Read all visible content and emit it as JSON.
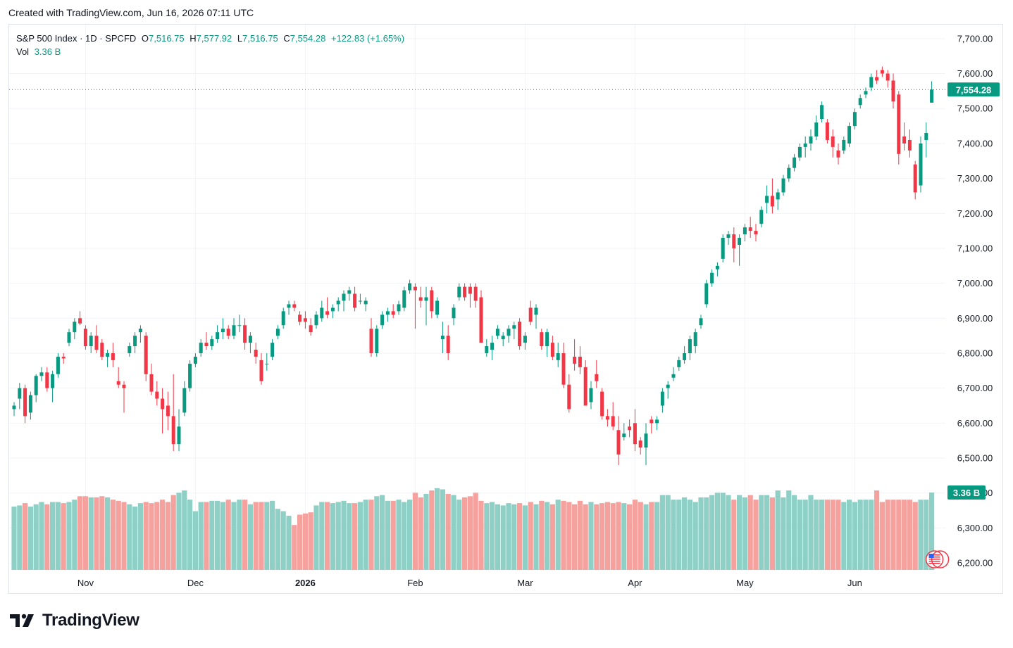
{
  "header": {
    "created_text": "Created with TradingView.com, Jun 16, 2026 07:11 UTC"
  },
  "legend": {
    "symbol": "S&P 500 Index · 1D · SPCFD",
    "o_label": "O",
    "o_value": "7,516.75",
    "h_label": "H",
    "h_value": "7,577.92",
    "l_label": "L",
    "l_value": "7,516.75",
    "c_label": "C",
    "c_value": "7,554.28",
    "change": "+122.83 (+1.65%)",
    "vol_label": "Vol",
    "vol_value": "3.36 B"
  },
  "footer": {
    "brand": "TradingView"
  },
  "colors": {
    "up": "#089981",
    "down": "#f23645",
    "vol_up": "#8fd0c6",
    "vol_down": "#f5a29f",
    "grid": "#f0f3fa",
    "text": "#131722"
  },
  "icons": {
    "logo": "tradingview-logo-icon",
    "flag": "us-flag-icon"
  },
  "chart_data": {
    "type": "candlestick",
    "symbol": "S&P 500 Index",
    "interval": "1D",
    "ylim": [
      6180,
      7740
    ],
    "y_ticks": [
      "7,700.00",
      "7,600.00",
      "7,500.00",
      "7,400.00",
      "7,300.00",
      "7,200.00",
      "7,100.00",
      "7,000.00",
      "6,900.00",
      "6,800.00",
      "6,700.00",
      "6,600.00",
      "6,500.00",
      "6,400.00",
      "6,300.00",
      "6,200.00"
    ],
    "y_tick_values": [
      7700,
      7600,
      7500,
      7400,
      7300,
      7200,
      7100,
      7000,
      6900,
      6800,
      6700,
      6600,
      6500,
      6400,
      6300,
      6200
    ],
    "x_ticks": [
      "Nov",
      "Dec",
      "2026",
      "Feb",
      "Mar",
      "Apr",
      "May",
      "Jun"
    ],
    "x_tick_bold": [
      false,
      false,
      true,
      false,
      false,
      false,
      false,
      false
    ],
    "x_tick_index": [
      13,
      33,
      53,
      73,
      93,
      113,
      133,
      153
    ],
    "last_price": 7554.28,
    "last_price_label": "7,554.28",
    "last_volume_label": "3.36 B",
    "grid": true,
    "candles": [
      [
        6640,
        6660,
        6620,
        6650,
        2.75
      ],
      [
        6670,
        6715,
        6640,
        6700,
        2.8
      ],
      [
        6700,
        6710,
        6600,
        6620,
        2.9
      ],
      [
        6630,
        6690,
        6610,
        6680,
        2.75
      ],
      [
        6680,
        6740,
        6660,
        6735,
        2.85
      ],
      [
        6735,
        6760,
        6720,
        6745,
        2.95
      ],
      [
        6745,
        6760,
        6690,
        6700,
        2.85
      ],
      [
        6700,
        6750,
        6660,
        6740,
        2.95
      ],
      [
        6740,
        6800,
        6730,
        6790,
        2.95
      ],
      [
        6790,
        6800,
        6770,
        6785,
        2.9
      ],
      [
        6830,
        6870,
        6820,
        6860,
        2.95
      ],
      [
        6860,
        6900,
        6840,
        6890,
        3.05
      ],
      [
        6900,
        6920,
        6880,
        6885,
        3.2
      ],
      [
        6870,
        6880,
        6810,
        6820,
        3.2
      ],
      [
        6820,
        6860,
        6800,
        6850,
        3.15
      ],
      [
        6850,
        6880,
        6800,
        6810,
        3.15
      ],
      [
        6830,
        6840,
        6780,
        6790,
        3.2
      ],
      [
        6790,
        6810,
        6760,
        6800,
        3.15
      ],
      [
        6800,
        6830,
        6760,
        6780,
        3.05
      ],
      [
        6720,
        6760,
        6700,
        6710,
        3.0
      ],
      [
        6710,
        6720,
        6630,
        6700,
        2.95
      ],
      [
        6800,
        6830,
        6790,
        6820,
        2.85
      ],
      [
        6820,
        6860,
        6800,
        6850,
        2.75
      ],
      [
        6860,
        6880,
        6830,
        6870,
        2.9
      ],
      [
        6850,
        6860,
        6720,
        6740,
        2.95
      ],
      [
        6740,
        6770,
        6680,
        6690,
        2.9
      ],
      [
        6690,
        6720,
        6650,
        6670,
        2.95
      ],
      [
        6670,
        6700,
        6570,
        6640,
        3.05
      ],
      [
        6650,
        6690,
        6580,
        6620,
        2.95
      ],
      [
        6620,
        6740,
        6520,
        6540,
        3.25
      ],
      [
        6540,
        6640,
        6520,
        6590,
        3.35
      ],
      [
        6630,
        6720,
        6620,
        6700,
        3.45
      ],
      [
        6700,
        6780,
        6690,
        6770,
        3.05
      ],
      [
        6770,
        6800,
        6760,
        6790,
        2.55
      ],
      [
        6800,
        6840,
        6790,
        6830,
        2.95
      ],
      [
        6830,
        6860,
        6810,
        6820,
        2.95
      ],
      [
        6820,
        6850,
        6810,
        6840,
        3.0
      ],
      [
        6840,
        6880,
        6830,
        6860,
        3.0
      ],
      [
        6860,
        6900,
        6840,
        6870,
        2.95
      ],
      [
        6870,
        6880,
        6840,
        6850,
        3.05
      ],
      [
        6850,
        6900,
        6840,
        6880,
        2.95
      ],
      [
        6880,
        6910,
        6860,
        6880,
        3.05
      ],
      [
        6880,
        6900,
        6810,
        6830,
        3.05
      ],
      [
        6830,
        6860,
        6800,
        6850,
        2.85
      ],
      [
        6810,
        6830,
        6770,
        6790,
        2.95
      ],
      [
        6780,
        6800,
        6710,
        6720,
        2.95
      ],
      [
        6770,
        6800,
        6750,
        6770,
        2.95
      ],
      [
        6790,
        6840,
        6780,
        6830,
        3.0
      ],
      [
        6850,
        6880,
        6840,
        6870,
        2.65
      ],
      [
        6880,
        6930,
        6870,
        6920,
        2.55
      ],
      [
        6930,
        6950,
        6910,
        6940,
        2.35
      ],
      [
        6940,
        6950,
        6920,
        6930,
        1.95
      ],
      [
        6910,
        6920,
        6880,
        6890,
        2.4
      ],
      [
        6900,
        6920,
        6870,
        6890,
        2.45
      ],
      [
        6880,
        6900,
        6850,
        6860,
        2.5
      ],
      [
        6880,
        6920,
        6870,
        6910,
        2.8
      ],
      [
        6900,
        6950,
        6890,
        6930,
        2.95
      ],
      [
        6920,
        6960,
        6900,
        6910,
        2.95
      ],
      [
        6920,
        6940,
        6900,
        6930,
        2.9
      ],
      [
        6940,
        6960,
        6920,
        6950,
        2.95
      ],
      [
        6950,
        6980,
        6920,
        6970,
        3.0
      ],
      [
        6970,
        6990,
        6950,
        6980,
        2.9
      ],
      [
        6970,
        6990,
        6920,
        6930,
        2.9
      ],
      [
        6950,
        6970,
        6940,
        6950,
        2.95
      ],
      [
        6940,
        6960,
        6920,
        6950,
        3.05
      ],
      [
        6870,
        6900,
        6790,
        6800,
        3.05
      ],
      [
        6800,
        6880,
        6790,
        6870,
        3.2
      ],
      [
        6880,
        6920,
        6870,
        6910,
        3.25
      ],
      [
        6910,
        6930,
        6890,
        6920,
        3.0
      ],
      [
        6920,
        6940,
        6900,
        6910,
        3.0
      ],
      [
        6920,
        6950,
        6910,
        6940,
        3.05
      ],
      [
        6930,
        6990,
        6920,
        6980,
        2.95
      ],
      [
        6980,
        7010,
        6970,
        7000,
        3.05
      ],
      [
        6990,
        7000,
        6870,
        6980,
        3.35
      ],
      [
        6960,
        6990,
        6930,
        6950,
        3.15
      ],
      [
        6950,
        6990,
        6880,
        6960,
        3.3
      ],
      [
        6980,
        6990,
        6900,
        6920,
        3.45
      ],
      [
        6910,
        6960,
        6900,
        6950,
        3.55
      ],
      [
        6840,
        6890,
        6800,
        6850,
        3.5
      ],
      [
        6850,
        6880,
        6780,
        6800,
        3.3
      ],
      [
        6900,
        6940,
        6880,
        6930,
        3.25
      ],
      [
        6960,
        7000,
        6950,
        6990,
        3.05
      ],
      [
        6990,
        7000,
        6950,
        6960,
        3.15
      ],
      [
        6990,
        7000,
        6930,
        6970,
        3.2
      ],
      [
        6990,
        7000,
        6930,
        6950,
        3.35
      ],
      [
        6960,
        6980,
        6830,
        6830,
        3.0
      ],
      [
        6800,
        6840,
        6790,
        6820,
        2.9
      ],
      [
        6810,
        6850,
        6780,
        6830,
        2.95
      ],
      [
        6850,
        6880,
        6840,
        6870,
        2.85
      ],
      [
        6840,
        6860,
        6820,
        6850,
        2.8
      ],
      [
        6850,
        6880,
        6830,
        6870,
        2.9
      ],
      [
        6870,
        6890,
        6840,
        6880,
        2.85
      ],
      [
        6890,
        6900,
        6810,
        6820,
        2.9
      ],
      [
        6830,
        6860,
        6810,
        6850,
        2.8
      ],
      [
        6930,
        6950,
        6880,
        6890,
        2.95
      ],
      [
        6910,
        6940,
        6870,
        6930,
        2.85
      ],
      [
        6860,
        6870,
        6810,
        6820,
        3.0
      ],
      [
        6820,
        6870,
        6790,
        6860,
        2.95
      ],
      [
        6830,
        6850,
        6780,
        6790,
        2.85
      ],
      [
        6780,
        6830,
        6760,
        6800,
        3.05
      ],
      [
        6800,
        6830,
        6700,
        6710,
        3.0
      ],
      [
        6710,
        6740,
        6630,
        6640,
        2.95
      ],
      [
        6790,
        6840,
        6750,
        6770,
        2.85
      ],
      [
        6790,
        6820,
        6740,
        6760,
        3.0
      ],
      [
        6760,
        6780,
        6650,
        6650,
        2.85
      ],
      [
        6660,
        6720,
        6640,
        6700,
        2.95
      ],
      [
        6740,
        6780,
        6700,
        6720,
        2.85
      ],
      [
        6690,
        6700,
        6610,
        6620,
        2.9
      ],
      [
        6620,
        6640,
        6590,
        6610,
        2.95
      ],
      [
        6620,
        6660,
        6580,
        6590,
        2.9
      ],
      [
        6580,
        6620,
        6480,
        6510,
        2.95
      ],
      [
        6560,
        6600,
        6550,
        6570,
        2.9
      ],
      [
        6590,
        6610,
        6560,
        6580,
        2.85
      ],
      [
        6600,
        6640,
        6520,
        6540,
        3.05
      ],
      [
        6550,
        6560,
        6510,
        6530,
        2.95
      ],
      [
        6530,
        6600,
        6480,
        6570,
        2.85
      ],
      [
        6610,
        6620,
        6570,
        6600,
        2.95
      ],
      [
        6600,
        6620,
        6580,
        6610,
        2.95
      ],
      [
        6650,
        6700,
        6630,
        6690,
        3.25
      ],
      [
        6700,
        6720,
        6670,
        6710,
        3.25
      ],
      [
        6730,
        6760,
        6720,
        6740,
        3.05
      ],
      [
        6760,
        6790,
        6750,
        6780,
        3.05
      ],
      [
        6780,
        6820,
        6770,
        6800,
        3.15
      ],
      [
        6800,
        6850,
        6780,
        6840,
        3.05
      ],
      [
        6820,
        6870,
        6800,
        6860,
        2.95
      ],
      [
        6880,
        6910,
        6870,
        6900,
        3.15
      ],
      [
        6940,
        7010,
        6930,
        7000,
        3.15
      ],
      [
        7000,
        7040,
        6990,
        7030,
        3.25
      ],
      [
        7040,
        7060,
        7020,
        7050,
        3.35
      ],
      [
        7070,
        7140,
        7060,
        7130,
        3.35
      ],
      [
        7130,
        7150,
        7110,
        7140,
        3.25
      ],
      [
        7140,
        7160,
        7060,
        7100,
        3.05
      ],
      [
        7110,
        7140,
        7050,
        7130,
        3.25
      ],
      [
        7140,
        7170,
        7120,
        7160,
        3.15
      ],
      [
        7160,
        7190,
        7130,
        7150,
        3.25
      ],
      [
        7150,
        7170,
        7120,
        7140,
        3.05
      ],
      [
        7170,
        7220,
        7160,
        7210,
        3.25
      ],
      [
        7230,
        7280,
        7200,
        7250,
        3.25
      ],
      [
        7250,
        7300,
        7200,
        7220,
        3.15
      ],
      [
        7240,
        7270,
        7210,
        7260,
        3.45
      ],
      [
        7260,
        7310,
        7250,
        7300,
        3.15
      ],
      [
        7300,
        7340,
        7290,
        7330,
        3.45
      ],
      [
        7330,
        7370,
        7320,
        7360,
        3.25
      ],
      [
        7360,
        7400,
        7350,
        7390,
        3.05
      ],
      [
        7390,
        7420,
        7360,
        7400,
        3.05
      ],
      [
        7400,
        7440,
        7380,
        7420,
        3.25
      ],
      [
        7420,
        7480,
        7410,
        7460,
        3.05
      ],
      [
        7470,
        7520,
        7460,
        7510,
        3.05
      ],
      [
        7460,
        7470,
        7400,
        7410,
        3.05
      ],
      [
        7420,
        7440,
        7360,
        7390,
        3.05
      ],
      [
        7380,
        7400,
        7340,
        7360,
        3.05
      ],
      [
        7380,
        7420,
        7370,
        7410,
        2.95
      ],
      [
        7400,
        7460,
        7390,
        7450,
        3.05
      ],
      [
        7450,
        7500,
        7440,
        7490,
        2.95
      ],
      [
        7510,
        7540,
        7500,
        7530,
        3.05
      ],
      [
        7540,
        7560,
        7530,
        7550,
        3.05
      ],
      [
        7560,
        7600,
        7550,
        7590,
        3.05
      ],
      [
        7590,
        7610,
        7570,
        7580,
        3.45
      ],
      [
        7610,
        7620,
        7590,
        7600,
        2.95
      ],
      [
        7600,
        7610,
        7560,
        7580,
        3.05
      ],
      [
        7580,
        7600,
        7500,
        7520,
        3.05
      ],
      [
        7540,
        7550,
        7340,
        7370,
        3.05
      ],
      [
        7420,
        7460,
        7380,
        7400,
        3.05
      ],
      [
        7410,
        7440,
        7360,
        7380,
        3.05
      ],
      [
        7340,
        7350,
        7240,
        7260,
        2.95
      ],
      [
        7280,
        7420,
        7260,
        7400,
        3.05
      ],
      [
        7410,
        7460,
        7360,
        7430,
        3.05
      ],
      [
        7516.75,
        7577.92,
        7516.75,
        7554.28,
        3.36
      ]
    ]
  }
}
